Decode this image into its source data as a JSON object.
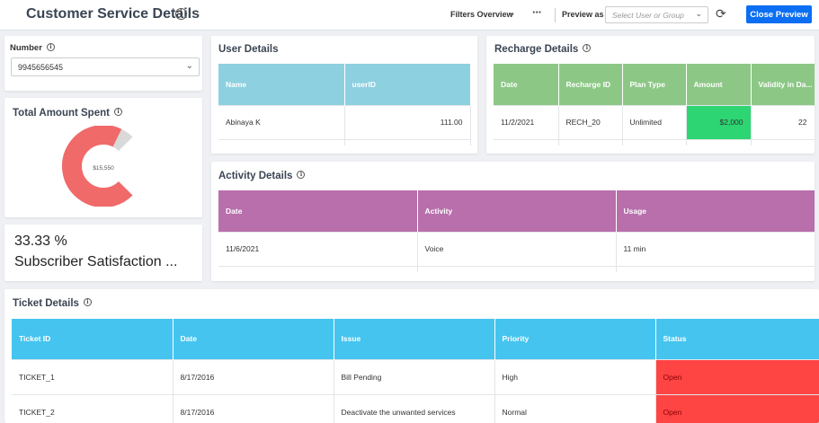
{
  "header": {
    "title": "Customer Service Details",
    "filters_label": "Filters Overview",
    "preview_label": "Preview as",
    "preview_placeholder": "Select User or Group",
    "close_label": "Close Preview"
  },
  "number_card": {
    "label": "Number",
    "value": "9945656545"
  },
  "total_spent": {
    "title": "Total Amount Spent",
    "value": "$15,550",
    "fill_fraction": 0.93,
    "colors": {
      "fill": "#f06a6a",
      "rest": "#d9d9d9"
    }
  },
  "kpi": {
    "value": "33.33 %",
    "label": "Subscriber Satisfaction ..."
  },
  "user_details": {
    "title": "User Details",
    "columns": [
      "Name",
      "userID"
    ],
    "rows": [
      [
        "Abinaya K",
        "111.00"
      ]
    ]
  },
  "recharge_details": {
    "title": "Recharge Details",
    "columns": [
      "Date",
      "Recharge ID",
      "Plan Type",
      "Amount",
      "Validity in Da..."
    ],
    "rows": [
      [
        "11/2/2021",
        "RECH_20",
        "Unlimited",
        "$2,000",
        "22"
      ]
    ],
    "highlight_color": "#2ed573"
  },
  "activity_details": {
    "title": "Activity Details",
    "columns": [
      "Date",
      "Activity",
      "Usage"
    ],
    "rows": [
      [
        "11/6/2021",
        "Voice",
        "11 min"
      ]
    ]
  },
  "ticket_details": {
    "title": "Ticket Details",
    "columns": [
      "Ticket ID",
      "Date",
      "Issue",
      "Priority",
      "Status"
    ],
    "rows": [
      [
        "TICKET_1",
        "8/17/2016",
        "Bill Pending",
        "High",
        "Open"
      ],
      [
        "TICKET_2",
        "8/17/2016",
        "Deactivate the unwanted services",
        "Normal",
        "Open"
      ]
    ],
    "status_color": "#ff4444"
  },
  "icons": [
    "info-icon",
    "chevron-down-icon",
    "more-icon",
    "refresh-icon"
  ]
}
